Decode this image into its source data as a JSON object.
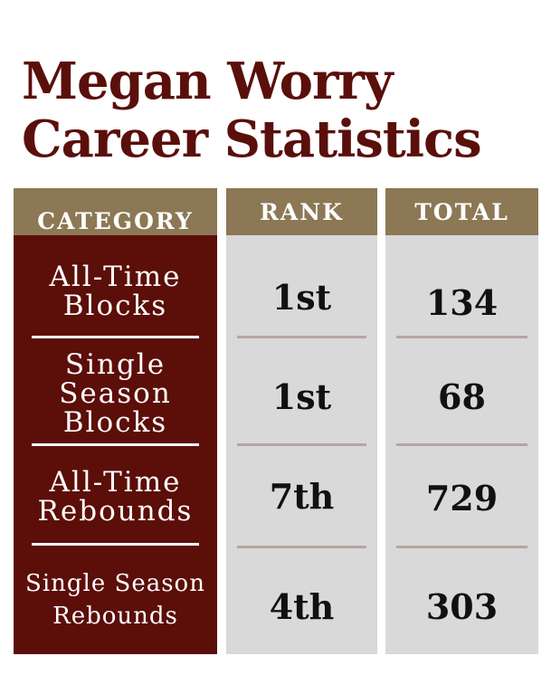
{
  "title": {
    "line1": "Megan Worry",
    "line2": "Career Statistics"
  },
  "columns": {
    "category": "CATEGORY",
    "rank": "RANK",
    "total": "TOTAL"
  },
  "rows": [
    {
      "category_lines": [
        "All-Time",
        "Blocks"
      ],
      "rank": "1st",
      "total": "134"
    },
    {
      "category_lines": [
        "Single",
        "Season",
        "Blocks"
      ],
      "rank": "1st",
      "total": "68"
    },
    {
      "category_lines": [
        "All-Time",
        "Rebounds"
      ],
      "rank": "7th",
      "total": "729"
    },
    {
      "category_lines": [
        "Single Season",
        "Rebounds"
      ],
      "rank": "4th",
      "total": "303"
    }
  ],
  "colors": {
    "title": "#5a0f0b",
    "category_column": "#5c0e09",
    "header": "#8c7855",
    "value_columns": "#d9d9d9",
    "divider_light": "#ffffff",
    "divider_gray": "#b8a4a2"
  }
}
